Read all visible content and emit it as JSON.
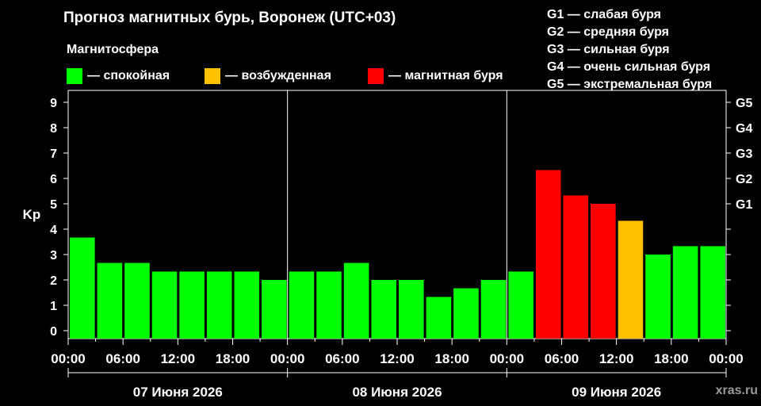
{
  "header": {
    "title": "Прогноз магнитных бурь, Воронеж (UTC+03)"
  },
  "legend": {
    "title": "Магнитосфера",
    "items": [
      {
        "label": "— спокойная",
        "color": "#00ff00"
      },
      {
        "label": "— возбужденная",
        "color": "#ffc000"
      },
      {
        "label": "— магнитная буря",
        "color": "#ff0000"
      }
    ]
  },
  "g_legend": [
    "G1 — слабая буря",
    "G2 — средняя буря",
    "G3 — сильная буря",
    "G4 — очень сильная буря",
    "G5 — экстремальная буря"
  ],
  "watermark": "xras.ru",
  "chart_data": {
    "type": "bar",
    "ylabel": "Kp",
    "ylim": [
      0,
      9
    ],
    "y_ticks": [
      "0",
      "1",
      "2",
      "3",
      "4",
      "5",
      "6",
      "7",
      "8",
      "9"
    ],
    "right_ticks": [
      {
        "label": "G1",
        "value": 5
      },
      {
        "label": "G2",
        "value": 6
      },
      {
        "label": "G3",
        "value": 7
      },
      {
        "label": "G4",
        "value": 8
      },
      {
        "label": "G5",
        "value": 9
      }
    ],
    "x_tick_labels": [
      "00:00",
      "06:00",
      "12:00",
      "18:00",
      "00:00",
      "06:00",
      "12:00",
      "18:00",
      "00:00",
      "06:00",
      "12:00",
      "18:00",
      "00:00"
    ],
    "days": [
      "07 Июня 2026",
      "08 Июня 2026",
      "09 Июня 2026"
    ],
    "values": [
      3.67,
      2.67,
      2.67,
      2.33,
      2.33,
      2.33,
      2.33,
      2.0,
      2.33,
      2.33,
      2.67,
      2.0,
      2.0,
      1.33,
      1.67,
      2.0,
      2.33,
      6.33,
      5.33,
      5.0,
      4.33,
      3.0,
      3.33,
      3.33
    ],
    "bar_colors": [
      "#00ff00",
      "#00ff00",
      "#00ff00",
      "#00ff00",
      "#00ff00",
      "#00ff00",
      "#00ff00",
      "#00ff00",
      "#00ff00",
      "#00ff00",
      "#00ff00",
      "#00ff00",
      "#00ff00",
      "#00ff00",
      "#00ff00",
      "#00ff00",
      "#00ff00",
      "#ff0000",
      "#ff0000",
      "#ff0000",
      "#ffc000",
      "#00ff00",
      "#00ff00",
      "#00ff00"
    ]
  }
}
